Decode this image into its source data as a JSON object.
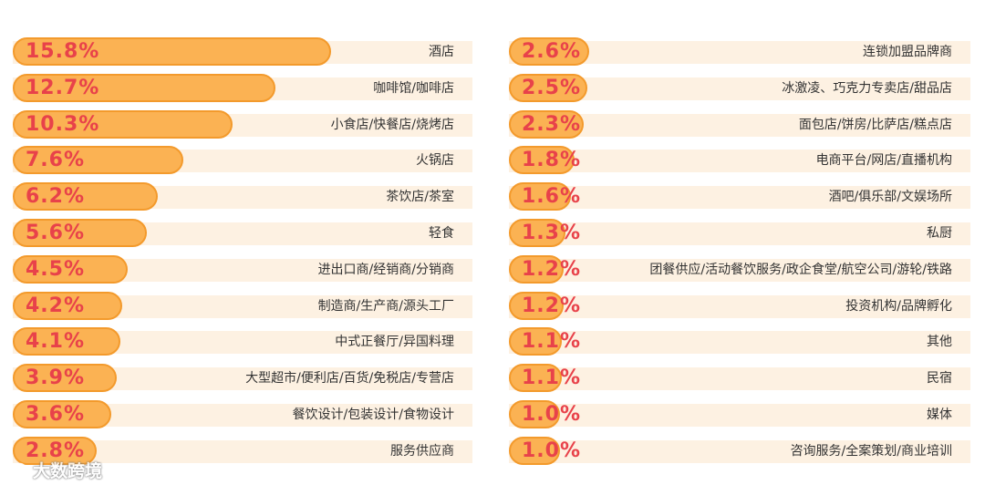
{
  "chart_data": {
    "type": "bar",
    "orientation": "horizontal",
    "unit": "%",
    "colors": {
      "bar_fill": "#fbb253",
      "bar_border": "#f39a2c",
      "track": "#fdf1e2",
      "value_text": "#e8424a",
      "label_text": "#333333"
    },
    "left": [
      {
        "label": "酒店",
        "value": 15.8,
        "display": "15.8%"
      },
      {
        "label": "咖啡馆/咖啡店",
        "value": 12.7,
        "display": "12.7%"
      },
      {
        "label": "小食店/快餐店/烧烤店",
        "value": 10.3,
        "display": "10.3%"
      },
      {
        "label": "火锅店",
        "value": 7.6,
        "display": "7.6%"
      },
      {
        "label": "茶饮店/茶室",
        "value": 6.2,
        "display": "6.2%"
      },
      {
        "label": "轻食",
        "value": 5.6,
        "display": "5.6%"
      },
      {
        "label": "进出口商/经销商/分销商",
        "value": 4.5,
        "display": "4.5%"
      },
      {
        "label": "制造商/生产商/源头工厂",
        "value": 4.2,
        "display": "4.2%"
      },
      {
        "label": "中式正餐厅/异国料理",
        "value": 4.1,
        "display": "4.1%"
      },
      {
        "label": "大型超市/便利店/百货/免税店/专营店",
        "value": 3.9,
        "display": "3.9%"
      },
      {
        "label": "餐饮设计/包装设计/食物设计",
        "value": 3.6,
        "display": "3.6%"
      },
      {
        "label": "服务供应商",
        "value": 2.8,
        "display": "2.8%"
      }
    ],
    "right": [
      {
        "label": "连锁加盟品牌商",
        "value": 2.6,
        "display": "2.6%"
      },
      {
        "label": "冰激凌、巧克力专卖店/甜品店",
        "value": 2.5,
        "display": "2.5%"
      },
      {
        "label": "面包店/饼房/比萨店/糕点店",
        "value": 2.3,
        "display": "2.3%"
      },
      {
        "label": "电商平台/网店/直播机构",
        "value": 1.8,
        "display": "1.8%"
      },
      {
        "label": "酒吧/俱乐部/文娱场所",
        "value": 1.6,
        "display": "1.6%"
      },
      {
        "label": "私厨",
        "value": 1.3,
        "display": "1.3%"
      },
      {
        "label": "团餐供应/活动餐饮服务/政企食堂/航空公司/游轮/铁路",
        "value": 1.2,
        "display": "1.2%"
      },
      {
        "label": "投资机构/品牌孵化",
        "value": 1.2,
        "display": "1.2%"
      },
      {
        "label": "其他",
        "value": 1.1,
        "display": "1.1%"
      },
      {
        "label": "民宿",
        "value": 1.1,
        "display": "1.1%"
      },
      {
        "label": "媒体",
        "value": 1.0,
        "display": "1.0%"
      },
      {
        "label": "咨询服务/全案策划/商业培训",
        "value": 1.0,
        "display": "1.0%"
      }
    ]
  },
  "watermark": {
    "text": "大数跨境"
  }
}
